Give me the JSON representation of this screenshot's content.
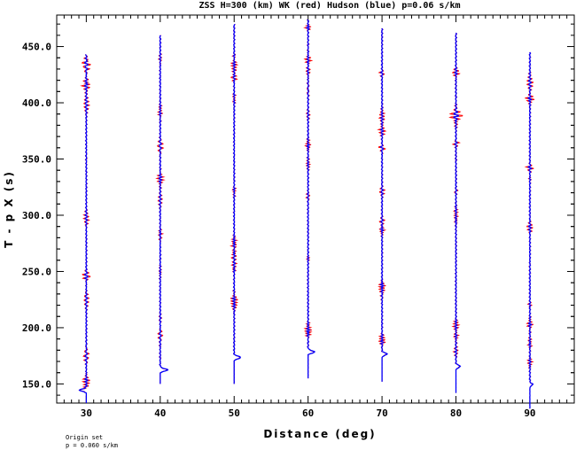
{
  "chart_data": {
    "type": "line",
    "title": "ZSS H=300 (km) WK (red) Hudson (blue) p=0.06 s/km",
    "xlabel": "Distance (deg)",
    "ylabel": "T - p X (s)",
    "xlim": [
      26,
      96
    ],
    "ylim": [
      133,
      478
    ],
    "x_ticks": [
      "30",
      "40",
      "50",
      "60",
      "70",
      "80",
      "90"
    ],
    "y_ticks": [
      "150.0",
      "200.0",
      "250.0",
      "300.0",
      "350.0",
      "400.0",
      "450.0"
    ],
    "grid": false,
    "legend": "none",
    "series": [
      {
        "color": "#ff0000"
      },
      {
        "color": "#0000ff"
      }
    ],
    "traces": [
      {
        "distance": 30,
        "start": 133,
        "end": 443,
        "arrival": 143,
        "pulse_amp": -2.2
      },
      {
        "distance": 40,
        "start": 150,
        "end": 460,
        "arrival": 161,
        "pulse_amp": 2.5
      },
      {
        "distance": 50,
        "start": 150,
        "end": 470,
        "arrival": 172,
        "pulse_amp": 2.3
      },
      {
        "distance": 60,
        "start": 155,
        "end": 474,
        "arrival": 177,
        "pulse_amp": 2.2
      },
      {
        "distance": 70,
        "start": 152,
        "end": 466,
        "arrival": 175,
        "pulse_amp": 1.7
      },
      {
        "distance": 80,
        "start": 142,
        "end": 462,
        "arrival": 164,
        "pulse_amp": 1.5
      },
      {
        "distance": 90,
        "start": 128,
        "end": 445,
        "arrival": 148,
        "pulse_amp": 0.9
      }
    ]
  },
  "annotation": {
    "line1": "Origin set",
    "line2": "p = 0.060 s/km"
  }
}
